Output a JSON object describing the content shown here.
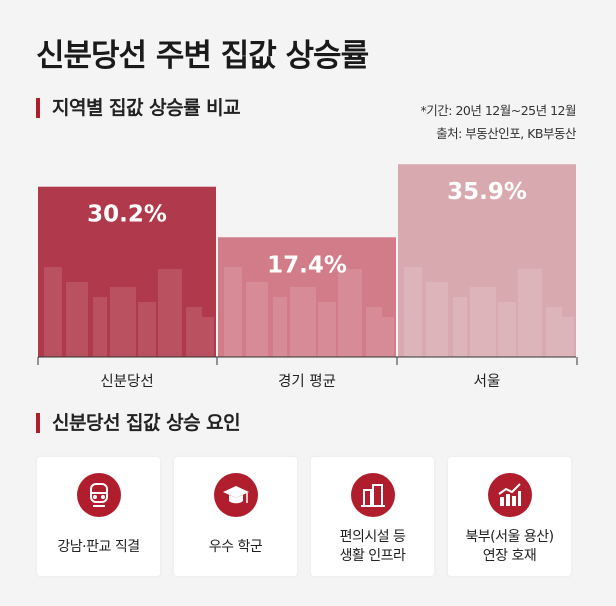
{
  "title": "신분당선 주변 집값 상승률",
  "section1": "지역별 집값 상승률 비교",
  "note_period": "*기간: 20년 12월~25년 12월",
  "note_source": "출처: 부동산인포, KB부동산",
  "chart_data": {
    "type": "bar",
    "categories": [
      "신분당선",
      "경기 평균",
      "서울"
    ],
    "values": [
      30.2,
      17.4,
      35.9
    ],
    "data_labels": [
      "30.2%",
      "17.4%",
      "35.9%"
    ],
    "colors": [
      "#b0394b",
      "#d17c88",
      "#d8aab0"
    ],
    "grid": false
  },
  "section2": "신분당선 집값 상승 요인",
  "factors": [
    {
      "icon": "train-icon",
      "label": "강남·판교 직결"
    },
    {
      "icon": "graduation-cap-icon",
      "label": "우수 학군"
    },
    {
      "icon": "buildings-icon",
      "label": "편의시설 등\n생활 인프라"
    },
    {
      "icon": "growth-chart-icon",
      "label": "북부(서울 용산)\n연장 호재"
    }
  ],
  "accent": "#b01e2e"
}
